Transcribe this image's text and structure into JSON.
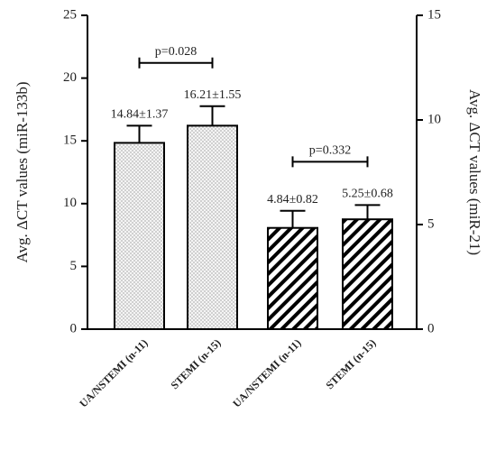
{
  "chart_data": {
    "type": "bar",
    "categories": [
      "UA/NSTEMI (n-11)",
      "STEMI (n-15)",
      "UA/NSTEMI (n-11)",
      "STEMI (n-15)"
    ],
    "values": [
      14.84,
      16.21,
      4.84,
      5.25
    ],
    "errors": [
      1.37,
      1.55,
      0.82,
      0.68
    ],
    "value_labels": [
      "14.84±1.37",
      "16.21±1.55",
      "4.84±0.82",
      "5.25±0.68"
    ],
    "axes": [
      "y",
      "y",
      "y2",
      "y2"
    ],
    "patterns": [
      "dots",
      "dots",
      "hatch",
      "hatch"
    ],
    "color": "#000000",
    "ylabel": "Avg.  ΔCT  values (miR-133b)",
    "y2label": "Avg.  ΔCT  values (miR-21)",
    "ylim": [
      0,
      25
    ],
    "yticks": [
      0,
      5,
      10,
      15,
      20,
      25
    ],
    "y2lim": [
      0,
      15
    ],
    "y2ticks": [
      0,
      5,
      10,
      15
    ],
    "annotations": [
      "p=0.028",
      "p=0.332"
    ],
    "grid": false
  }
}
